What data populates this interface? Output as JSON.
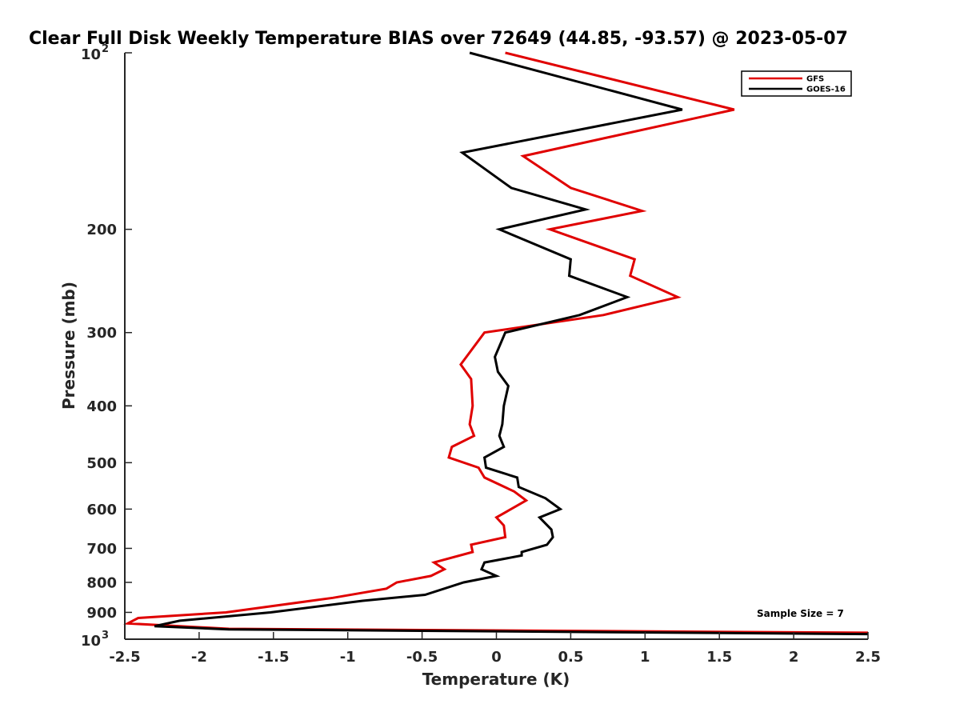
{
  "chart_data": {
    "type": "line",
    "title": "Clear Full Disk Weekly Temperature BIAS over 72649 (44.85, -93.57) @ 2023-05-07",
    "xlabel": "Temperature (K)",
    "ylabel": "Pressure (mb)",
    "xlim": [
      -2.5,
      2.5
    ],
    "ylim": [
      100,
      1000
    ],
    "yscale": "log",
    "y_reversed": true,
    "xticks": [
      -2.5,
      -2,
      -1.5,
      -1,
      -0.5,
      0,
      0.5,
      1,
      1.5,
      2,
      2.5
    ],
    "xtick_labels": [
      "-2.5",
      "-2",
      "-1.5",
      "-1",
      "-0.5",
      "0",
      "0.5",
      "1",
      "1.5",
      "2",
      "2.5"
    ],
    "yticks": [
      200,
      300,
      400,
      500,
      600,
      700,
      800,
      900
    ],
    "ytick_labels": [
      "200",
      "300",
      "400",
      "500",
      "600",
      "700",
      "800",
      "900"
    ],
    "ytick_decades": [
      {
        "value": 100,
        "base": "10",
        "exp": "2"
      },
      {
        "value": 1000,
        "base": "10",
        "exp": "3"
      }
    ],
    "grid": false,
    "legend_position": "top-right",
    "annotation": "Sample Size = 7",
    "series": [
      {
        "name": "GFS",
        "color": "#e00000",
        "points": [
          [
            0.06,
            100
          ],
          [
            1.6,
            125
          ],
          [
            0.18,
            150
          ],
          [
            0.5,
            170
          ],
          [
            0.98,
            186
          ],
          [
            0.36,
            200
          ],
          [
            0.93,
            225
          ],
          [
            0.9,
            240
          ],
          [
            1.22,
            261
          ],
          [
            0.72,
            280
          ],
          [
            -0.08,
            300
          ],
          [
            -0.24,
            340
          ],
          [
            -0.17,
            360
          ],
          [
            -0.16,
            400
          ],
          [
            -0.18,
            430
          ],
          [
            -0.15,
            450
          ],
          [
            -0.3,
            470
          ],
          [
            -0.32,
            490
          ],
          [
            -0.12,
            510
          ],
          [
            -0.08,
            530
          ],
          [
            0.12,
            560
          ],
          [
            0.2,
            580
          ],
          [
            0.0,
            620
          ],
          [
            0.05,
            640
          ],
          [
            0.06,
            670
          ],
          [
            -0.17,
            690
          ],
          [
            -0.16,
            710
          ],
          [
            -0.42,
            740
          ],
          [
            -0.35,
            760
          ],
          [
            -0.44,
            780
          ],
          [
            -0.67,
            800
          ],
          [
            -0.74,
            820
          ],
          [
            -1.1,
            850
          ],
          [
            -1.82,
            900
          ],
          [
            -2.41,
            920
          ],
          [
            -2.48,
            940
          ],
          [
            -1.8,
            960
          ],
          [
            2.5,
            975
          ]
        ]
      },
      {
        "name": "GOES-16",
        "color": "#000000",
        "points": [
          [
            -0.18,
            100
          ],
          [
            1.25,
            125
          ],
          [
            -0.23,
            148
          ],
          [
            0.1,
            170
          ],
          [
            0.6,
            185
          ],
          [
            0.02,
            200
          ],
          [
            0.5,
            225
          ],
          [
            0.49,
            240
          ],
          [
            0.88,
            261
          ],
          [
            0.56,
            280
          ],
          [
            0.06,
            300
          ],
          [
            -0.01,
            330
          ],
          [
            0.01,
            350
          ],
          [
            0.08,
            370
          ],
          [
            0.05,
            400
          ],
          [
            0.04,
            430
          ],
          [
            0.02,
            450
          ],
          [
            0.05,
            470
          ],
          [
            -0.08,
            490
          ],
          [
            -0.07,
            510
          ],
          [
            0.14,
            530
          ],
          [
            0.15,
            550
          ],
          [
            0.33,
            575
          ],
          [
            0.43,
            600
          ],
          [
            0.29,
            620
          ],
          [
            0.37,
            650
          ],
          [
            0.38,
            670
          ],
          [
            0.34,
            690
          ],
          [
            0.17,
            710
          ],
          [
            0.17,
            720
          ],
          [
            -0.08,
            740
          ],
          [
            -0.1,
            760
          ],
          [
            0.0,
            780
          ],
          [
            -0.22,
            800
          ],
          [
            -0.48,
            840
          ],
          [
            -0.9,
            860
          ],
          [
            -1.52,
            900
          ],
          [
            -2.13,
            930
          ],
          [
            -2.3,
            950
          ],
          [
            -1.8,
            962
          ],
          [
            2.5,
            980
          ]
        ]
      }
    ]
  }
}
